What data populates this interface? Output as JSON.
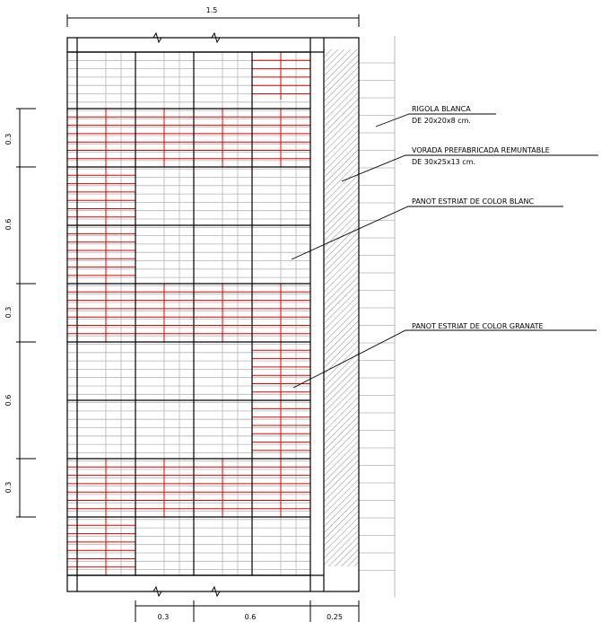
{
  "dimensions": {
    "top": "1.5",
    "left": [
      "0.3",
      "0.6",
      "0.3",
      "0.6",
      "0.3"
    ],
    "bottom": [
      "0.3",
      "0.6",
      "0.25"
    ]
  },
  "labels": [
    {
      "line1": "RIGOLA BLANCA",
      "line2": "DE 20x20x8 cm."
    },
    {
      "line1": "VORADA PREFABRICADA REMUNTABLE",
      "line2": "DE 30x25x13 cm."
    },
    {
      "line1": "PANOT ESTRIAT DE COLOR BLANC"
    },
    {
      "line1": "PANOT ESTRIAT DE COLOR GRANATE"
    }
  ],
  "colors": {
    "line": "#000000",
    "tile_grid": "#b4b4b4",
    "granate_tile": "#e00000",
    "hatch": "#8c8c8c"
  }
}
